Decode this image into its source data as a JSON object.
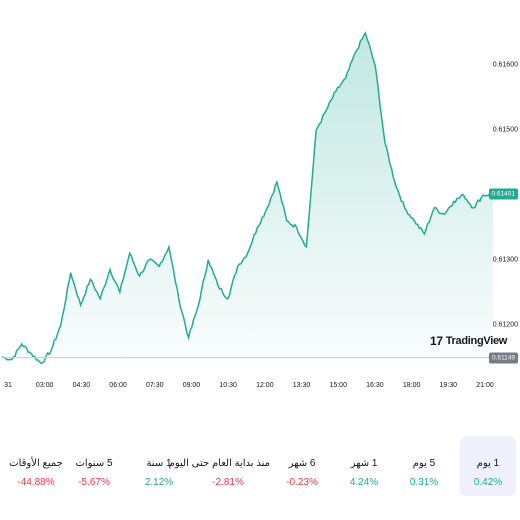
{
  "chart_data": {
    "type": "area",
    "x_tick_labels": [
      "31",
      "03:00",
      "04:30",
      "06:00",
      "07:30",
      "09:00",
      "10:30",
      "12:00",
      "13:30",
      "15:00",
      "16:30",
      "18:00",
      "19:30",
      "21:00"
    ],
    "y_tick_labels": [
      "0.61600",
      "0.61500",
      "0.61300",
      "0.61200"
    ],
    "ylim": [
      0.6113,
      0.6167
    ],
    "points_x_fraction_of_session": [
      0,
      0.02,
      0.04,
      0.06,
      0.08,
      0.1,
      0.12,
      0.14,
      0.16,
      0.18,
      0.2,
      0.22,
      0.24,
      0.26,
      0.28,
      0.3,
      0.32,
      0.34,
      0.36,
      0.38,
      0.4,
      0.42,
      0.44,
      0.46,
      0.48,
      0.5,
      0.52,
      0.54,
      0.56,
      0.58,
      0.6,
      0.62,
      0.64,
      0.66,
      0.68,
      0.7,
      0.72,
      0.74,
      0.76,
      0.78,
      0.8,
      0.82,
      0.84,
      0.86,
      0.88,
      0.9,
      0.92,
      0.94,
      0.96,
      0.98,
      1.0
    ],
    "values": [
      0.6115,
      0.61146,
      0.6117,
      0.61155,
      0.6114,
      0.6116,
      0.612,
      0.6128,
      0.6123,
      0.6127,
      0.6124,
      0.61285,
      0.6125,
      0.6131,
      0.61275,
      0.613,
      0.6129,
      0.6132,
      0.6124,
      0.6118,
      0.6123,
      0.613,
      0.6126,
      0.6124,
      0.6129,
      0.6131,
      0.6135,
      0.6138,
      0.6142,
      0.6136,
      0.6135,
      0.6132,
      0.615,
      0.6153,
      0.6156,
      0.6158,
      0.6162,
      0.6165,
      0.616,
      0.6148,
      0.6142,
      0.6138,
      0.6136,
      0.6134,
      0.6138,
      0.6137,
      0.6139,
      0.614,
      0.6138,
      0.614,
      0.61401
    ],
    "current_price_label": "0.61401",
    "base_price_label": "0.61149",
    "line_color": "#22ab94",
    "fill_color": "#22ab94",
    "grid": false
  },
  "brand": {
    "name": "TradingView",
    "mark": "17"
  },
  "periods": [
    {
      "label": "جميع الأوقات",
      "value": "-44.88%",
      "direction": "negative"
    },
    {
      "label": "5 سنوات",
      "value": "-5.67%",
      "direction": "negative"
    },
    {
      "label": "1 سنة",
      "value": "2.12%",
      "direction": "positive"
    },
    {
      "label": "منذ بداية العام حتى اليوم",
      "value": "-2.81%",
      "direction": "negative"
    },
    {
      "label": "6 شهر",
      "value": "-0.23%",
      "direction": "negative"
    },
    {
      "label": "1 شهر",
      "value": "4.24%",
      "direction": "positive"
    },
    {
      "label": "5 يوم",
      "value": "0.31%",
      "direction": "positive"
    },
    {
      "label": "1 يوم",
      "value": "0.42%",
      "direction": "positive",
      "active": true
    }
  ],
  "colors": {
    "positive": "#22ab94",
    "negative": "#f23645",
    "active_bg": "#eef1fb",
    "base_badge": "#787b86"
  }
}
